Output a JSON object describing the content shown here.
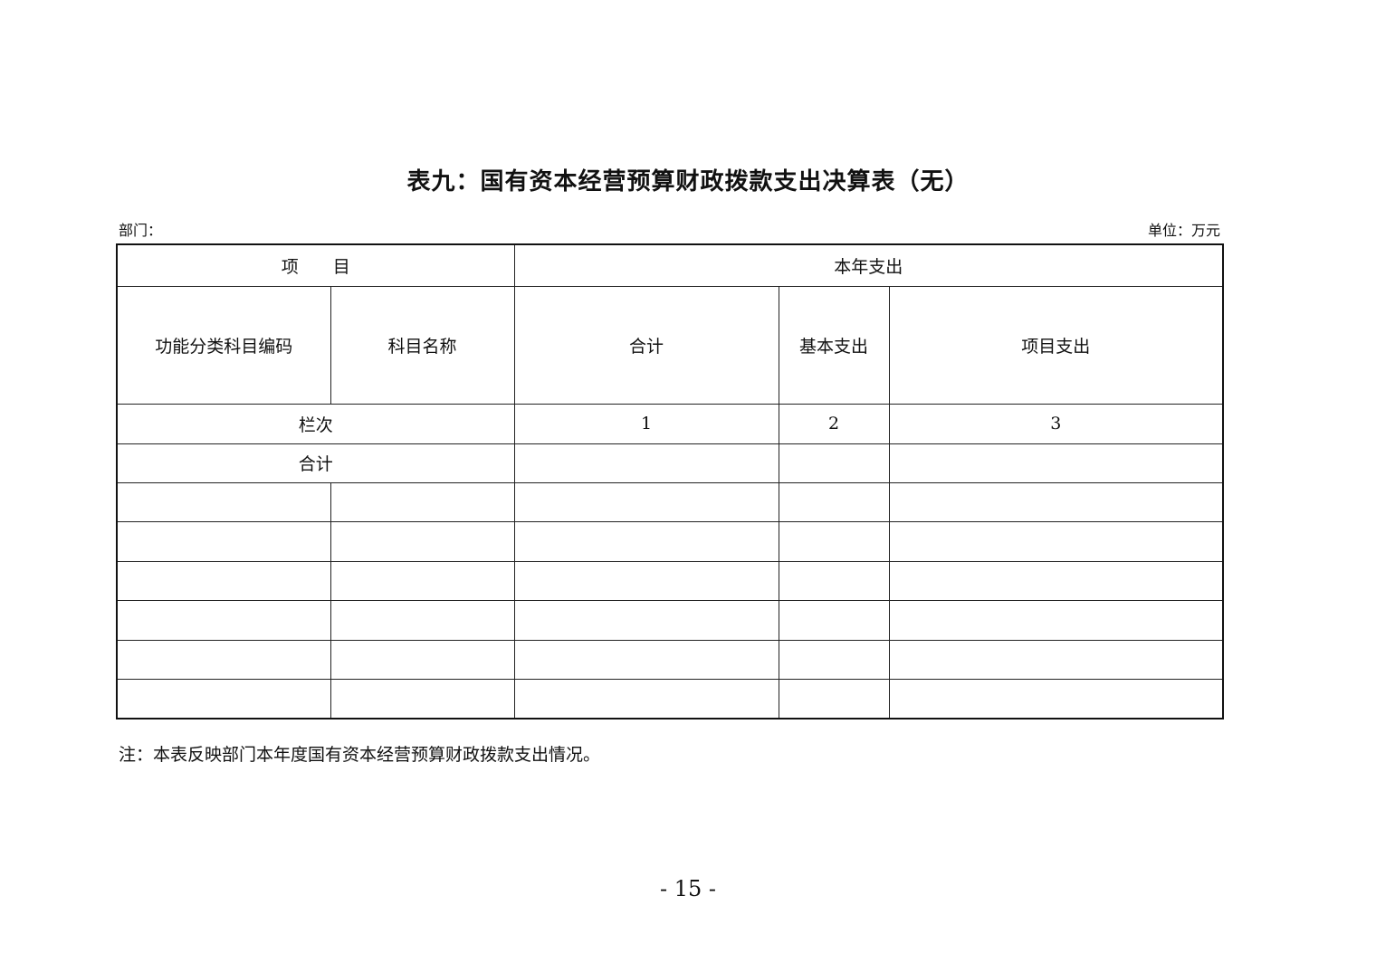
{
  "title": "表九：国有资本经营预算财政拨款支出决算表（无）",
  "department_label": "部门：",
  "unit_label": "单位：万元",
  "table": {
    "header_item": "项　　目",
    "header_current_year": "本年支出",
    "col_code": "功能分类科目编码",
    "col_name": "科目名称",
    "col_total": "合计",
    "col_basic": "基本支出",
    "col_project": "项目支出",
    "row_index_label": "栏次",
    "index_1": "1",
    "index_2": "2",
    "index_3": "3",
    "total_row_label": "合计",
    "rows": [
      [],
      [],
      [],
      [],
      [],
      []
    ]
  },
  "note": "注：本表反映部门本年度国有资本经营预算财政拨款支出情况。",
  "page_number": "- 15 -"
}
